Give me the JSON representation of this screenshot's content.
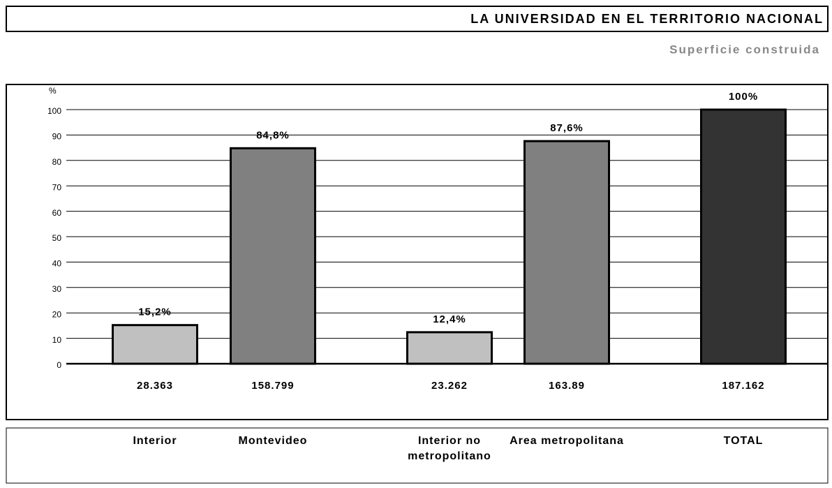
{
  "chart_data": {
    "type": "bar",
    "title": "LA UNIVERSIDAD EN EL TERRITORIO NACIONAL",
    "subtitle": "Superficie construida",
    "y_label": "%",
    "categories": [
      "Interior",
      "Montevideo",
      "Interior no metropolitano",
      "Area metropolitana",
      "TOTAL"
    ],
    "values": [
      15.2,
      84.8,
      12.4,
      87.6,
      100
    ],
    "value_labels": [
      "15,2%",
      "84,8%",
      "12,4%",
      "87,6%",
      "100%"
    ],
    "area_labels": [
      "28.363",
      "158.799",
      "23.262",
      "163.89",
      "187.162"
    ],
    "colors": [
      "#c0c0c0",
      "#808080",
      "#c0c0c0",
      "#808080",
      "#333333"
    ],
    "ylim": [
      0,
      100
    ],
    "yticks": [
      0,
      10,
      20,
      30,
      40,
      50,
      60,
      70,
      80,
      90,
      100
    ],
    "grid": true
  }
}
